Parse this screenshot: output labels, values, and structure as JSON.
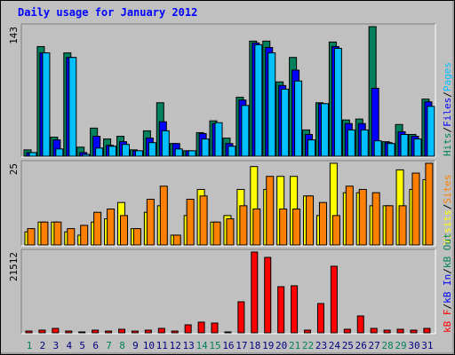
{
  "legend_separator": "/",
  "chart_data": [
    {
      "type": "bar",
      "title": "Daily usage for January 2012",
      "ylim": [
        0,
        143
      ],
      "yticks": [
        143
      ],
      "series": [
        {
          "name": "Hits",
          "color": "#00805c",
          "values": [
            7,
            121,
            21,
            114,
            10,
            31,
            19,
            22,
            7,
            28,
            59,
            14,
            6,
            26,
            39,
            20,
            65,
            127,
            127,
            82,
            109,
            29,
            59,
            126,
            40,
            41,
            143,
            16,
            35,
            24,
            63
          ]
        },
        {
          "name": "Files",
          "color": "#0000ff",
          "values": [
            4,
            114,
            18,
            109,
            4,
            22,
            12,
            16,
            6,
            20,
            38,
            14,
            6,
            25,
            36,
            14,
            62,
            125,
            120,
            78,
            95,
            24,
            58,
            121,
            36,
            36,
            75,
            15,
            27,
            22,
            60
          ]
        },
        {
          "name": "Pages",
          "color": "#00c0ff",
          "values": [
            4,
            114,
            8,
            109,
            2,
            9,
            11,
            13,
            6,
            15,
            28,
            8,
            6,
            19,
            37,
            11,
            56,
            123,
            114,
            74,
            83,
            18,
            58,
            119,
            29,
            29,
            17,
            14,
            24,
            19,
            55
          ]
        }
      ]
    },
    {
      "type": "bar",
      "ylim": [
        0,
        25
      ],
      "yticks": [
        25
      ],
      "series": [
        {
          "name": "Visits",
          "color": "#ffff00",
          "values": [
            4,
            7,
            7,
            4,
            3,
            7,
            8,
            13,
            5,
            10,
            12,
            3,
            9,
            17,
            7,
            9,
            17,
            24,
            17,
            21,
            21,
            15,
            9,
            25,
            16,
            16,
            12,
            12,
            23,
            17,
            20
          ]
        },
        {
          "name": "Sites",
          "color": "#ff8000",
          "values": [
            5,
            7,
            7,
            5,
            6,
            10,
            11,
            9,
            5,
            14,
            18,
            3,
            14,
            15,
            7,
            8,
            12,
            11,
            21,
            11,
            11,
            15,
            13,
            9,
            18,
            17,
            16,
            12,
            12,
            22,
            25
          ]
        }
      ]
    },
    {
      "type": "bar",
      "ylim": [
        0,
        21512
      ],
      "yticks": [
        21512
      ],
      "categories": [
        "1",
        "2",
        "3",
        "4",
        "5",
        "6",
        "7",
        "8",
        "9",
        "10",
        "11",
        "12",
        "13",
        "14",
        "15",
        "16",
        "17",
        "18",
        "19",
        "20",
        "21",
        "22",
        "23",
        "24",
        "25",
        "26",
        "27",
        "28",
        "29",
        "30",
        "31"
      ],
      "category_colors": [
        "#00805c",
        "#000080",
        "#000080",
        "#000080",
        "#000080",
        "#000080",
        "#00805c",
        "#00805c",
        "#000080",
        "#000080",
        "#000080",
        "#000080",
        "#000080",
        "#00805c",
        "#00805c",
        "#000080",
        "#000080",
        "#000080",
        "#000080",
        "#000080",
        "#00805c",
        "#00805c",
        "#000080",
        "#000080",
        "#000080",
        "#000080",
        "#000080",
        "#00805c",
        "#00805c",
        "#000080",
        "#000080"
      ],
      "series": [
        {
          "name": "kB F",
          "color": "#ff0000",
          "values": [
            470,
            710,
            1180,
            470,
            240,
            710,
            470,
            950,
            470,
            710,
            1180,
            470,
            2130,
            2840,
            2600,
            240,
            8270,
            21512,
            20090,
            12290,
            12530,
            710,
            7800,
            17730,
            950,
            4490,
            1180,
            710,
            950,
            710,
            1180
          ]
        },
        {
          "name": "kB In",
          "color": "#0000ff",
          "values": [
            null,
            null,
            null,
            null,
            null,
            null,
            null,
            null,
            null,
            null,
            null,
            null,
            null,
            null,
            null,
            null,
            null,
            null,
            null,
            null,
            null,
            null,
            null,
            null,
            null,
            null,
            null,
            null,
            null,
            null,
            null
          ]
        },
        {
          "name": "kB Out",
          "color": "#00805c",
          "values": [
            null,
            null,
            null,
            null,
            null,
            null,
            null,
            null,
            null,
            null,
            null,
            null,
            null,
            null,
            null,
            null,
            null,
            null,
            null,
            null,
            null,
            null,
            null,
            null,
            null,
            null,
            null,
            null,
            null,
            null,
            null
          ]
        }
      ]
    }
  ]
}
